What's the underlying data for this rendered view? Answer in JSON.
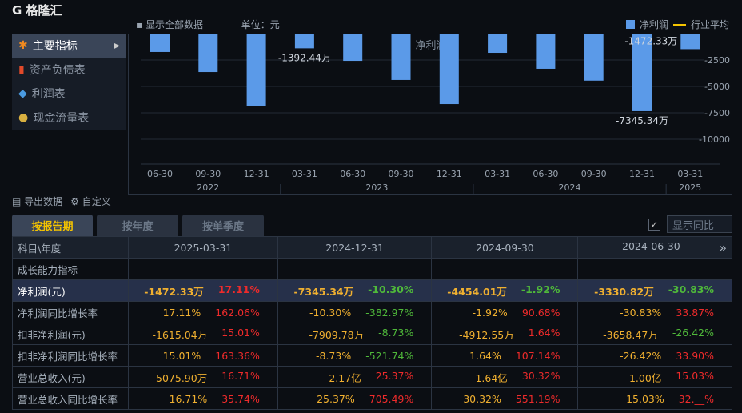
{
  "toolbar": {
    "show_all": "显示全部数据",
    "unit": "单位：元"
  },
  "legend": {
    "bar": "净利润",
    "line": "行业平均"
  },
  "sidebar": {
    "items": [
      {
        "label": "主要指标",
        "icon": "asterisk-icon"
      },
      {
        "label": "资产负债表",
        "icon": "document-icon"
      },
      {
        "label": "利润表",
        "icon": "cube-icon"
      },
      {
        "label": "现金流量表",
        "icon": "coins-icon"
      }
    ]
  },
  "chart_data": {
    "type": "bar",
    "title": "净利润",
    "ylim": [
      -12500,
      0
    ],
    "yticks": [
      "-2500",
      "-5000",
      "-7500",
      "-10000"
    ],
    "categories": [
      "06-30",
      "09-30",
      "12-31",
      "03-31",
      "06-30",
      "09-30",
      "12-31",
      "03-31",
      "06-30",
      "09-30",
      "12-31",
      "03-31"
    ],
    "years": [
      {
        "label": "2022",
        "span": 3
      },
      {
        "label": "2023",
        "span": 4
      },
      {
        "label": "2024",
        "span": 4
      },
      {
        "label": "2025",
        "span": 1
      }
    ],
    "values": [
      -1740,
      -3640,
      -6890,
      -1392.44,
      -2580,
      -4390,
      -6670,
      -1820,
      -3330.82,
      -4454.01,
      -7345.34,
      -1472.33
    ],
    "labels": [
      {
        "index": 3,
        "text": "-1392.44万"
      },
      {
        "index": 10,
        "text": "-7345.34万"
      },
      {
        "index": 11,
        "text": "-1472.33万"
      }
    ],
    "color": "#5b9ae8"
  },
  "tools": {
    "export": "导出数据",
    "custom": "自定义"
  },
  "tabs": [
    "按报告期",
    "按年度",
    "按单季度"
  ],
  "yoy": {
    "label": "显示同比",
    "check": "✓"
  },
  "table": {
    "corner": "科目\\年度",
    "more": "»",
    "columns": [
      "2025-03-31",
      "2024-12-31",
      "2024-09-30",
      "2024-06-30"
    ],
    "section": "成长能力指标",
    "rows": [
      {
        "label": "净利润(元)",
        "hl": true,
        "cells": [
          [
            "-1472.33万",
            "17.11%"
          ],
          [
            "-7345.34万",
            "-10.30%"
          ],
          [
            "-4454.01万",
            "-1.92%"
          ],
          [
            "-3330.82万",
            "-30.83%"
          ]
        ]
      },
      {
        "label": "净利润同比增长率",
        "cells": [
          [
            "17.11%",
            "162.06%"
          ],
          [
            "-10.30%",
            "-382.97%"
          ],
          [
            "-1.92%",
            "90.68%"
          ],
          [
            "-30.83%",
            "33.87%"
          ]
        ]
      },
      {
        "label": "扣非净利润(元)",
        "cells": [
          [
            "-1615.04万",
            "15.01%"
          ],
          [
            "-7909.78万",
            "-8.73%"
          ],
          [
            "-4912.55万",
            "1.64%"
          ],
          [
            "-3658.47万",
            "-26.42%"
          ]
        ]
      },
      {
        "label": "扣非净利润同比增长率",
        "cells": [
          [
            "15.01%",
            "163.36%"
          ],
          [
            "-8.73%",
            "-521.74%"
          ],
          [
            "1.64%",
            "107.14%"
          ],
          [
            "-26.42%",
            "33.90%"
          ]
        ]
      },
      {
        "label": "营业总收入(元)",
        "cells": [
          [
            "5075.90万",
            "16.71%"
          ],
          [
            "2.17亿",
            "25.37%"
          ],
          [
            "1.64亿",
            "30.32%"
          ],
          [
            "1.00亿",
            "15.03%"
          ]
        ]
      },
      {
        "label": "营业总收入同比增长率",
        "cells": [
          [
            "16.71%",
            "35.74%"
          ],
          [
            "25.37%",
            "705.49%"
          ],
          [
            "30.32%",
            "551.19%"
          ],
          [
            "15.03%",
            "32.__%"
          ]
        ]
      }
    ]
  },
  "watermark": "格隆汇"
}
